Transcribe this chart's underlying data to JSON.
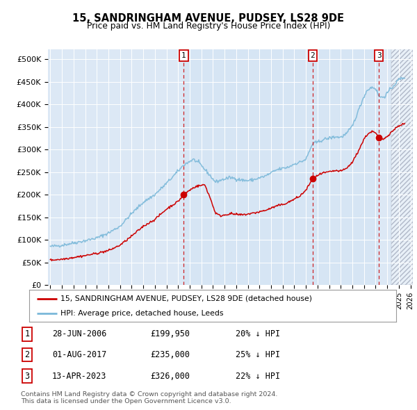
{
  "title": "15, SANDRINGHAM AVENUE, PUDSEY, LS28 9DE",
  "subtitle": "Price paid vs. HM Land Registry's House Price Index (HPI)",
  "yticks": [
    0,
    50000,
    100000,
    150000,
    200000,
    250000,
    300000,
    350000,
    400000,
    450000,
    500000
  ],
  "ytick_labels": [
    "£0",
    "£50K",
    "£100K",
    "£150K",
    "£200K",
    "£250K",
    "£300K",
    "£350K",
    "£400K",
    "£450K",
    "£500K"
  ],
  "hpi_color": "#7ab8d9",
  "price_color": "#cc0000",
  "background_color": "#dce8f5",
  "grid_color": "#ffffff",
  "sales": [
    {
      "date_x": 2006.49,
      "price": 199950,
      "label": "1"
    },
    {
      "date_x": 2017.58,
      "price": 235000,
      "label": "2"
    },
    {
      "date_x": 2023.28,
      "price": 326000,
      "label": "3"
    }
  ],
  "sale_table": [
    {
      "num": "1",
      "date": "28-JUN-2006",
      "price": "£199,950",
      "note": "20% ↓ HPI"
    },
    {
      "num": "2",
      "date": "01-AUG-2017",
      "price": "£235,000",
      "note": "25% ↓ HPI"
    },
    {
      "num": "3",
      "date": "13-APR-2023",
      "price": "£326,000",
      "note": "22% ↓ HPI"
    }
  ],
  "legend_entries": [
    "15, SANDRINGHAM AVENUE, PUDSEY, LS28 9DE (detached house)",
    "HPI: Average price, detached house, Leeds"
  ],
  "footer": "Contains HM Land Registry data © Crown copyright and database right 2024.\nThis data is licensed under the Open Government Licence v3.0.",
  "xmin": 1995,
  "xmax": 2026
}
